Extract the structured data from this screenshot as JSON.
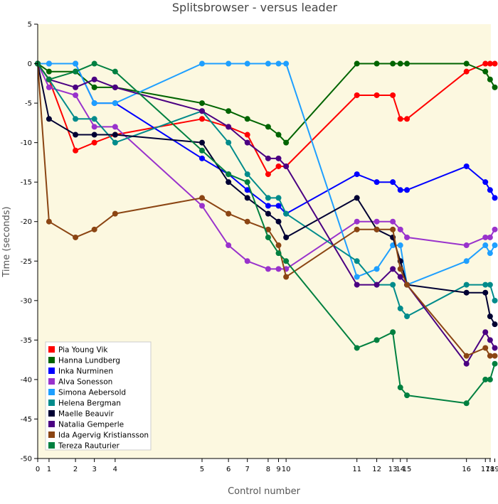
{
  "chart_data": {
    "type": "line",
    "title": "Splitsbrowser - versus leader",
    "xlabel": "Control number",
    "ylabel": "Time (seconds)",
    "xlim": [
      0,
      19
    ],
    "ylim": [
      -50,
      5
    ],
    "grid": false,
    "legend_position": "bottom-left",
    "background": "#fcf8e0",
    "x": [
      0,
      1,
      2,
      3,
      4,
      5,
      6,
      7,
      8,
      9,
      10,
      11,
      12,
      13,
      14,
      15,
      16,
      17,
      18,
      19
    ],
    "controls": [
      {
        "pos": 0,
        "label": "0"
      },
      {
        "pos": 0.6,
        "label": "1"
      },
      {
        "pos": 2,
        "label": "2"
      },
      {
        "pos": 3,
        "label": "3"
      },
      {
        "pos": 4.1,
        "label": "4"
      },
      {
        "pos": 8.7,
        "label": "5"
      },
      {
        "pos": 10.1,
        "label": "6"
      },
      {
        "pos": 11.1,
        "label": "7"
      },
      {
        "pos": 12.2,
        "label": "8"
      },
      {
        "pos": 12.75,
        "label": "9"
      },
      {
        "pos": 13.15,
        "label": "10"
      },
      {
        "pos": 16.9,
        "label": "11"
      },
      {
        "pos": 17.95,
        "label": "12"
      },
      {
        "pos": 18.8,
        "label": "13"
      },
      {
        "pos": 19.2,
        "label": "14"
      },
      {
        "pos": 19.55,
        "label": "15"
      },
      {
        "pos": 22.7,
        "label": "16"
      },
      {
        "pos": 23.7,
        "label": "17"
      },
      {
        "pos": 23.95,
        "label": "18"
      },
      {
        "pos": 24.2,
        "label": "19"
      }
    ],
    "yticks": [
      5,
      0,
      -5,
      -10,
      -15,
      -20,
      -25,
      -30,
      -35,
      -40,
      -45,
      -50
    ],
    "series": [
      {
        "name": "Pia Young Vik",
        "color": "#ff0000",
        "values": [
          0,
          -2,
          -11,
          -10,
          -9,
          -7,
          -8,
          -9,
          -14,
          -13,
          -13,
          -4,
          -4,
          -4,
          -7,
          -7,
          -1,
          0,
          0,
          0
        ]
      },
      {
        "name": "Hanna Lundberg",
        "color": "#006400",
        "values": [
          0,
          -1,
          -1,
          -3,
          -3,
          -5,
          -6,
          -7,
          -8,
          -9,
          -10,
          0,
          0,
          0,
          0,
          0,
          0,
          -1,
          -2,
          -3
        ]
      },
      {
        "name": "Inka Nurminen",
        "color": "#0000ff",
        "values": [
          0,
          0,
          0,
          -5,
          -5,
          -12,
          -14,
          -16,
          -18,
          -18,
          -19,
          -14,
          -15,
          -15,
          -16,
          -16,
          -13,
          -15,
          -16,
          -17
        ]
      },
      {
        "name": "Alva Sonesson",
        "color": "#9932cc",
        "values": [
          0,
          -3,
          -4,
          -8,
          -8,
          -18,
          -23,
          -25,
          -26,
          -26,
          -26,
          -20,
          -20,
          -20,
          -21,
          -22,
          -23,
          -22,
          -22,
          -21
        ]
      },
      {
        "name": "Simona Aebersold",
        "color": "#1e9fff",
        "values": [
          0,
          0,
          0,
          -5,
          -5,
          0,
          0,
          0,
          0,
          0,
          0,
          -27,
          -26,
          -23,
          -23,
          -28,
          -25,
          -23,
          -24,
          -23
        ]
      },
      {
        "name": "Helena Bergman",
        "color": "#008b8b",
        "values": [
          0,
          -2,
          -7,
          -7,
          -10,
          -6,
          -10,
          -14,
          -17,
          -17,
          -19,
          -25,
          -28,
          -28,
          -31,
          -32,
          -28,
          -28,
          -28,
          -30
        ]
      },
      {
        "name": "Maelle Beauvir",
        "color": "#000033",
        "values": [
          0,
          -7,
          -9,
          -9,
          -9,
          -10,
          -15,
          -17,
          -19,
          -20,
          -22,
          -17,
          -21,
          -22,
          -25,
          -28,
          -29,
          -29,
          -32,
          -33
        ]
      },
      {
        "name": "Natalia Gemperle",
        "color": "#4b0082",
        "values": [
          0,
          -2,
          -3,
          -2,
          -3,
          -6,
          -8,
          -10,
          -12,
          -12,
          -13,
          -28,
          -28,
          -26,
          -27,
          -28,
          -38,
          -34,
          -35,
          -36
        ]
      },
      {
        "name": "Ida Agervig Kristiansson",
        "color": "#8b4513",
        "values": [
          0,
          -20,
          -22,
          -21,
          -19,
          -17,
          -19,
          -20,
          -21,
          -23,
          -27,
          -21,
          -21,
          -21,
          -26,
          -28,
          -37,
          -36,
          -37,
          -37
        ]
      },
      {
        "name": "Tereza Rauturier",
        "color": "#008040",
        "values": [
          0,
          -2,
          -1,
          0,
          -1,
          -11,
          -14,
          -15,
          -22,
          -24,
          -25,
          -36,
          -35,
          -34,
          -41,
          -42,
          -43,
          -40,
          -40,
          -38
        ]
      }
    ]
  }
}
